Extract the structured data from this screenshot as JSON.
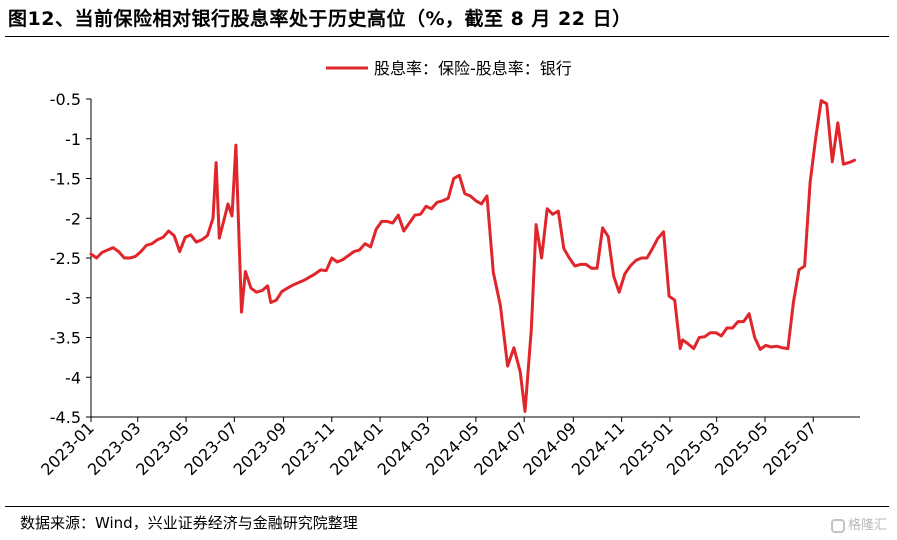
{
  "header": {
    "title": "图12、当前保险相对银行股息率处于历史高位（%，截至 8 月 22 日）"
  },
  "footer": {
    "source": "数据来源：Wind，兴业证券经济与金融研究院整理",
    "watermark": "格隆汇"
  },
  "chart_data": {
    "type": "line",
    "legend_position": "top-center",
    "grid": false,
    "ylim": [
      -4.5,
      -0.5
    ],
    "yticks": [
      -0.5,
      -1,
      -1.5,
      -2,
      -2.5,
      -3,
      -3.5,
      -4,
      -4.5
    ],
    "ytick_labels": [
      "-0.5",
      "-1",
      "-1.5",
      "-2",
      "-2.5",
      "-3",
      "-3.5",
      "-4",
      "-4.5"
    ],
    "xlim": [
      "2023-01-01",
      "2025-08-29"
    ],
    "xticks": [
      "2023-01-01",
      "2023-03-01",
      "2023-05-01",
      "2023-07-01",
      "2023-09-01",
      "2023-11-01",
      "2024-01-01",
      "2024-03-01",
      "2024-05-01",
      "2024-07-01",
      "2024-09-01",
      "2024-11-01",
      "2025-01-01",
      "2025-03-01",
      "2025-05-01",
      "2025-07-01"
    ],
    "xtick_labels": [
      "2023-01",
      "2023-03",
      "2023-05",
      "2023-07",
      "2023-09",
      "2023-11",
      "2024-01",
      "2024-03",
      "2024-05",
      "2024-07",
      "2024-09",
      "2024-11",
      "2025-01",
      "2025-03",
      "2025-05",
      "2025-07"
    ],
    "series": [
      {
        "name": "股息率：保险-股息率：银行",
        "color": "#e0262b",
        "points": [
          [
            "2023-01-01",
            -2.45
          ],
          [
            "2023-01-08",
            -2.5
          ],
          [
            "2023-01-15",
            -2.43
          ],
          [
            "2023-01-22",
            -2.4
          ],
          [
            "2023-01-29",
            -2.37
          ],
          [
            "2023-02-05",
            -2.42
          ],
          [
            "2023-02-12",
            -2.5
          ],
          [
            "2023-02-19",
            -2.5
          ],
          [
            "2023-02-26",
            -2.48
          ],
          [
            "2023-03-05",
            -2.42
          ],
          [
            "2023-03-12",
            -2.34
          ],
          [
            "2023-03-19",
            -2.32
          ],
          [
            "2023-03-26",
            -2.27
          ],
          [
            "2023-04-02",
            -2.24
          ],
          [
            "2023-04-09",
            -2.16
          ],
          [
            "2023-04-16",
            -2.22
          ],
          [
            "2023-04-23",
            -2.42
          ],
          [
            "2023-04-30",
            -2.24
          ],
          [
            "2023-05-07",
            -2.21
          ],
          [
            "2023-05-14",
            -2.3
          ],
          [
            "2023-05-21",
            -2.27
          ],
          [
            "2023-05-28",
            -2.22
          ],
          [
            "2023-06-04",
            -2.0
          ],
          [
            "2023-06-08",
            -1.3
          ],
          [
            "2023-06-12",
            -2.25
          ],
          [
            "2023-06-19",
            -1.98
          ],
          [
            "2023-06-23",
            -1.82
          ],
          [
            "2023-06-28",
            -1.97
          ],
          [
            "2023-07-03",
            -1.08
          ],
          [
            "2023-07-10",
            -3.18
          ],
          [
            "2023-07-15",
            -2.67
          ],
          [
            "2023-07-22",
            -2.88
          ],
          [
            "2023-07-29",
            -2.93
          ],
          [
            "2023-08-05",
            -2.91
          ],
          [
            "2023-08-12",
            -2.85
          ],
          [
            "2023-08-16",
            -3.06
          ],
          [
            "2023-08-23",
            -3.03
          ],
          [
            "2023-08-30",
            -2.92
          ],
          [
            "2023-09-06",
            -2.88
          ],
          [
            "2023-09-13",
            -2.84
          ],
          [
            "2023-09-20",
            -2.81
          ],
          [
            "2023-09-27",
            -2.78
          ],
          [
            "2023-10-04",
            -2.74
          ],
          [
            "2023-10-11",
            -2.7
          ],
          [
            "2023-10-18",
            -2.65
          ],
          [
            "2023-10-25",
            -2.66
          ],
          [
            "2023-11-01",
            -2.5
          ],
          [
            "2023-11-08",
            -2.55
          ],
          [
            "2023-11-15",
            -2.52
          ],
          [
            "2023-11-22",
            -2.47
          ],
          [
            "2023-11-29",
            -2.42
          ],
          [
            "2023-12-06",
            -2.4
          ],
          [
            "2023-12-13",
            -2.32
          ],
          [
            "2023-12-20",
            -2.36
          ],
          [
            "2023-12-27",
            -2.14
          ],
          [
            "2024-01-03",
            -2.04
          ],
          [
            "2024-01-10",
            -2.04
          ],
          [
            "2024-01-17",
            -2.06
          ],
          [
            "2024-01-24",
            -1.96
          ],
          [
            "2024-01-31",
            -2.16
          ],
          [
            "2024-02-07",
            -2.06
          ],
          [
            "2024-02-14",
            -1.96
          ],
          [
            "2024-02-21",
            -1.95
          ],
          [
            "2024-02-28",
            -1.85
          ],
          [
            "2024-03-06",
            -1.88
          ],
          [
            "2024-03-13",
            -1.8
          ],
          [
            "2024-03-20",
            -1.78
          ],
          [
            "2024-03-27",
            -1.75
          ],
          [
            "2024-04-03",
            -1.5
          ],
          [
            "2024-04-10",
            -1.46
          ],
          [
            "2024-04-17",
            -1.69
          ],
          [
            "2024-04-24",
            -1.72
          ],
          [
            "2024-05-01",
            -1.78
          ],
          [
            "2024-05-08",
            -1.82
          ],
          [
            "2024-05-15",
            -1.72
          ],
          [
            "2024-05-23",
            -2.68
          ],
          [
            "2024-06-01",
            -3.1
          ],
          [
            "2024-06-10",
            -3.86
          ],
          [
            "2024-06-18",
            -3.63
          ],
          [
            "2024-06-26",
            -3.93
          ],
          [
            "2024-07-02",
            -4.43
          ],
          [
            "2024-07-10",
            -3.4
          ],
          [
            "2024-07-16",
            -2.08
          ],
          [
            "2024-07-23",
            -2.5
          ],
          [
            "2024-07-30",
            -1.88
          ],
          [
            "2024-08-06",
            -1.95
          ],
          [
            "2024-08-13",
            -1.91
          ],
          [
            "2024-08-20",
            -2.38
          ],
          [
            "2024-08-27",
            -2.5
          ],
          [
            "2024-09-03",
            -2.6
          ],
          [
            "2024-09-10",
            -2.58
          ],
          [
            "2024-09-17",
            -2.58
          ],
          [
            "2024-09-24",
            -2.63
          ],
          [
            "2024-10-01",
            -2.63
          ],
          [
            "2024-10-08",
            -2.12
          ],
          [
            "2024-10-15",
            -2.23
          ],
          [
            "2024-10-22",
            -2.73
          ],
          [
            "2024-10-29",
            -2.93
          ],
          [
            "2024-11-05",
            -2.7
          ],
          [
            "2024-11-12",
            -2.6
          ],
          [
            "2024-11-19",
            -2.53
          ],
          [
            "2024-11-26",
            -2.5
          ],
          [
            "2024-12-03",
            -2.5
          ],
          [
            "2024-12-10",
            -2.38
          ],
          [
            "2024-12-17",
            -2.25
          ],
          [
            "2024-12-24",
            -2.17
          ],
          [
            "2024-12-31",
            -2.98
          ],
          [
            "2025-01-07",
            -3.03
          ],
          [
            "2025-01-14",
            -3.64
          ],
          [
            "2025-01-17",
            -3.53
          ],
          [
            "2025-01-24",
            -3.58
          ],
          [
            "2025-01-31",
            -3.64
          ],
          [
            "2025-02-07",
            -3.5
          ],
          [
            "2025-02-14",
            -3.49
          ],
          [
            "2025-02-21",
            -3.44
          ],
          [
            "2025-02-28",
            -3.44
          ],
          [
            "2025-03-07",
            -3.48
          ],
          [
            "2025-03-14",
            -3.38
          ],
          [
            "2025-03-21",
            -3.38
          ],
          [
            "2025-03-28",
            -3.3
          ],
          [
            "2025-04-04",
            -3.3
          ],
          [
            "2025-04-11",
            -3.2
          ],
          [
            "2025-04-18",
            -3.5
          ],
          [
            "2025-04-25",
            -3.65
          ],
          [
            "2025-05-02",
            -3.6
          ],
          [
            "2025-05-09",
            -3.62
          ],
          [
            "2025-05-16",
            -3.61
          ],
          [
            "2025-05-23",
            -3.63
          ],
          [
            "2025-05-30",
            -3.64
          ],
          [
            "2025-06-06",
            -3.05
          ],
          [
            "2025-06-13",
            -2.65
          ],
          [
            "2025-06-20",
            -2.6
          ],
          [
            "2025-06-27",
            -1.55
          ],
          [
            "2025-07-04",
            -1.0
          ],
          [
            "2025-07-11",
            -0.52
          ],
          [
            "2025-07-18",
            -0.56
          ],
          [
            "2025-07-25",
            -1.29
          ],
          [
            "2025-08-01",
            -0.8
          ],
          [
            "2025-08-08",
            -1.32
          ],
          [
            "2025-08-15",
            -1.3
          ],
          [
            "2025-08-22",
            -1.27
          ]
        ]
      }
    ]
  }
}
